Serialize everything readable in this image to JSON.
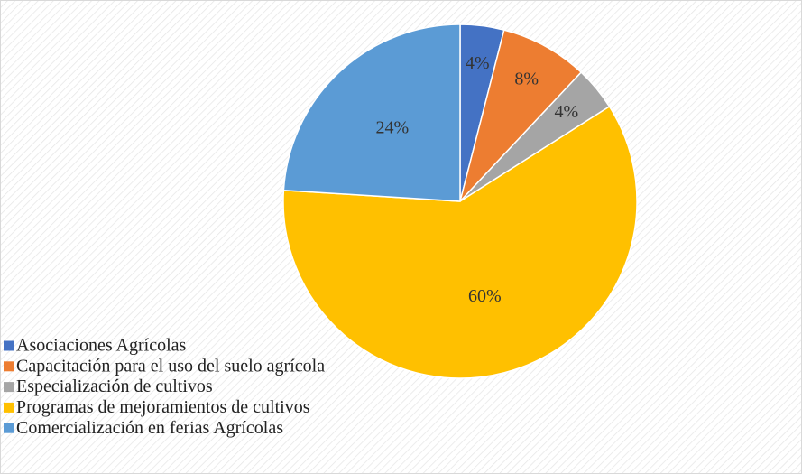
{
  "chart_data": {
    "type": "pie",
    "categories": [
      "Asociaciones Agrícolas",
      "Capacitación para el uso del suelo agrícola",
      "Especialización de cultivos",
      "Programas de mejoramientos de cultivos",
      "Comercialización en ferias Agrícolas"
    ],
    "values": [
      4,
      8,
      4,
      60,
      24
    ],
    "value_labels": [
      "4%",
      "8%",
      "4%",
      "60%",
      "24%"
    ],
    "colors": [
      "#4472c4",
      "#ed7d31",
      "#a5a5a5",
      "#ffc000",
      "#5b9bd5"
    ],
    "legend": "bottom-left"
  }
}
